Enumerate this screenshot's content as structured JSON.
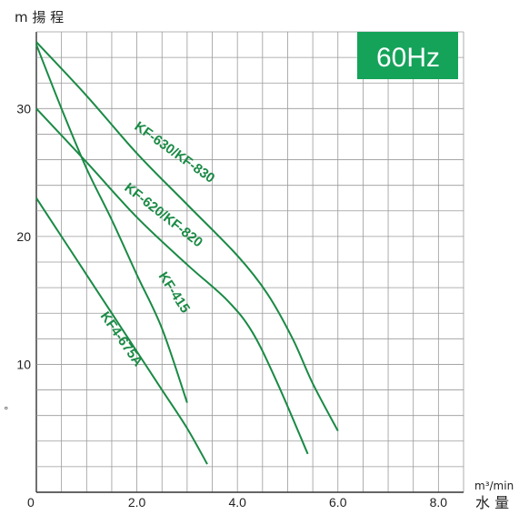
{
  "chart_data": {
    "type": "line",
    "y_axis_title": "m 揚 程",
    "x_axis_unit_label": "m³/min",
    "x_axis_title": "水 量",
    "frequency_badge": "60Hz",
    "origin_label": "0",
    "xlim": [
      0,
      8.5
    ],
    "ylim": [
      0,
      36
    ],
    "x_ticks": [
      {
        "value": 2.0,
        "label": "2.0"
      },
      {
        "value": 4.0,
        "label": "4.0"
      },
      {
        "value": 6.0,
        "label": "6.0"
      },
      {
        "value": 8.0,
        "label": "8.0"
      }
    ],
    "y_ticks": [
      {
        "value": 10,
        "label": "10"
      },
      {
        "value": 20,
        "label": "20"
      },
      {
        "value": 30,
        "label": "30"
      }
    ],
    "grid": true,
    "line_color": "#1a8a45",
    "badge_color": "#15a35a",
    "series": [
      {
        "name": "KF-630/KF-830",
        "points": [
          [
            0,
            35.2
          ],
          [
            1,
            31.0
          ],
          [
            2,
            26.5
          ],
          [
            3,
            22.5
          ],
          [
            4,
            18.5
          ],
          [
            4.6,
            15.5
          ],
          [
            5.1,
            12.0
          ],
          [
            5.5,
            8.5
          ],
          [
            6.0,
            4.8
          ]
        ]
      },
      {
        "name": "KF-620/KF-820",
        "points": [
          [
            0,
            30.0
          ],
          [
            1,
            25.8
          ],
          [
            2,
            21.5
          ],
          [
            3,
            17.8
          ],
          [
            3.8,
            15.0
          ],
          [
            4.3,
            12.5
          ],
          [
            4.8,
            8.5
          ],
          [
            5.4,
            3.0
          ]
        ]
      },
      {
        "name": "KF-415",
        "points": [
          [
            0,
            35.0
          ],
          [
            0.5,
            30.0
          ],
          [
            1,
            25.3
          ],
          [
            1.5,
            21.3
          ],
          [
            2,
            17.0
          ],
          [
            2.5,
            12.8
          ],
          [
            3.0,
            7.0
          ]
        ]
      },
      {
        "name": "KF4-675A",
        "points": [
          [
            0,
            23.0
          ],
          [
            0.5,
            20.0
          ],
          [
            1,
            17.0
          ],
          [
            1.5,
            14.0
          ],
          [
            2,
            11.0
          ],
          [
            2.5,
            8.0
          ],
          [
            3.0,
            5.0
          ],
          [
            3.4,
            2.2
          ]
        ]
      }
    ]
  }
}
